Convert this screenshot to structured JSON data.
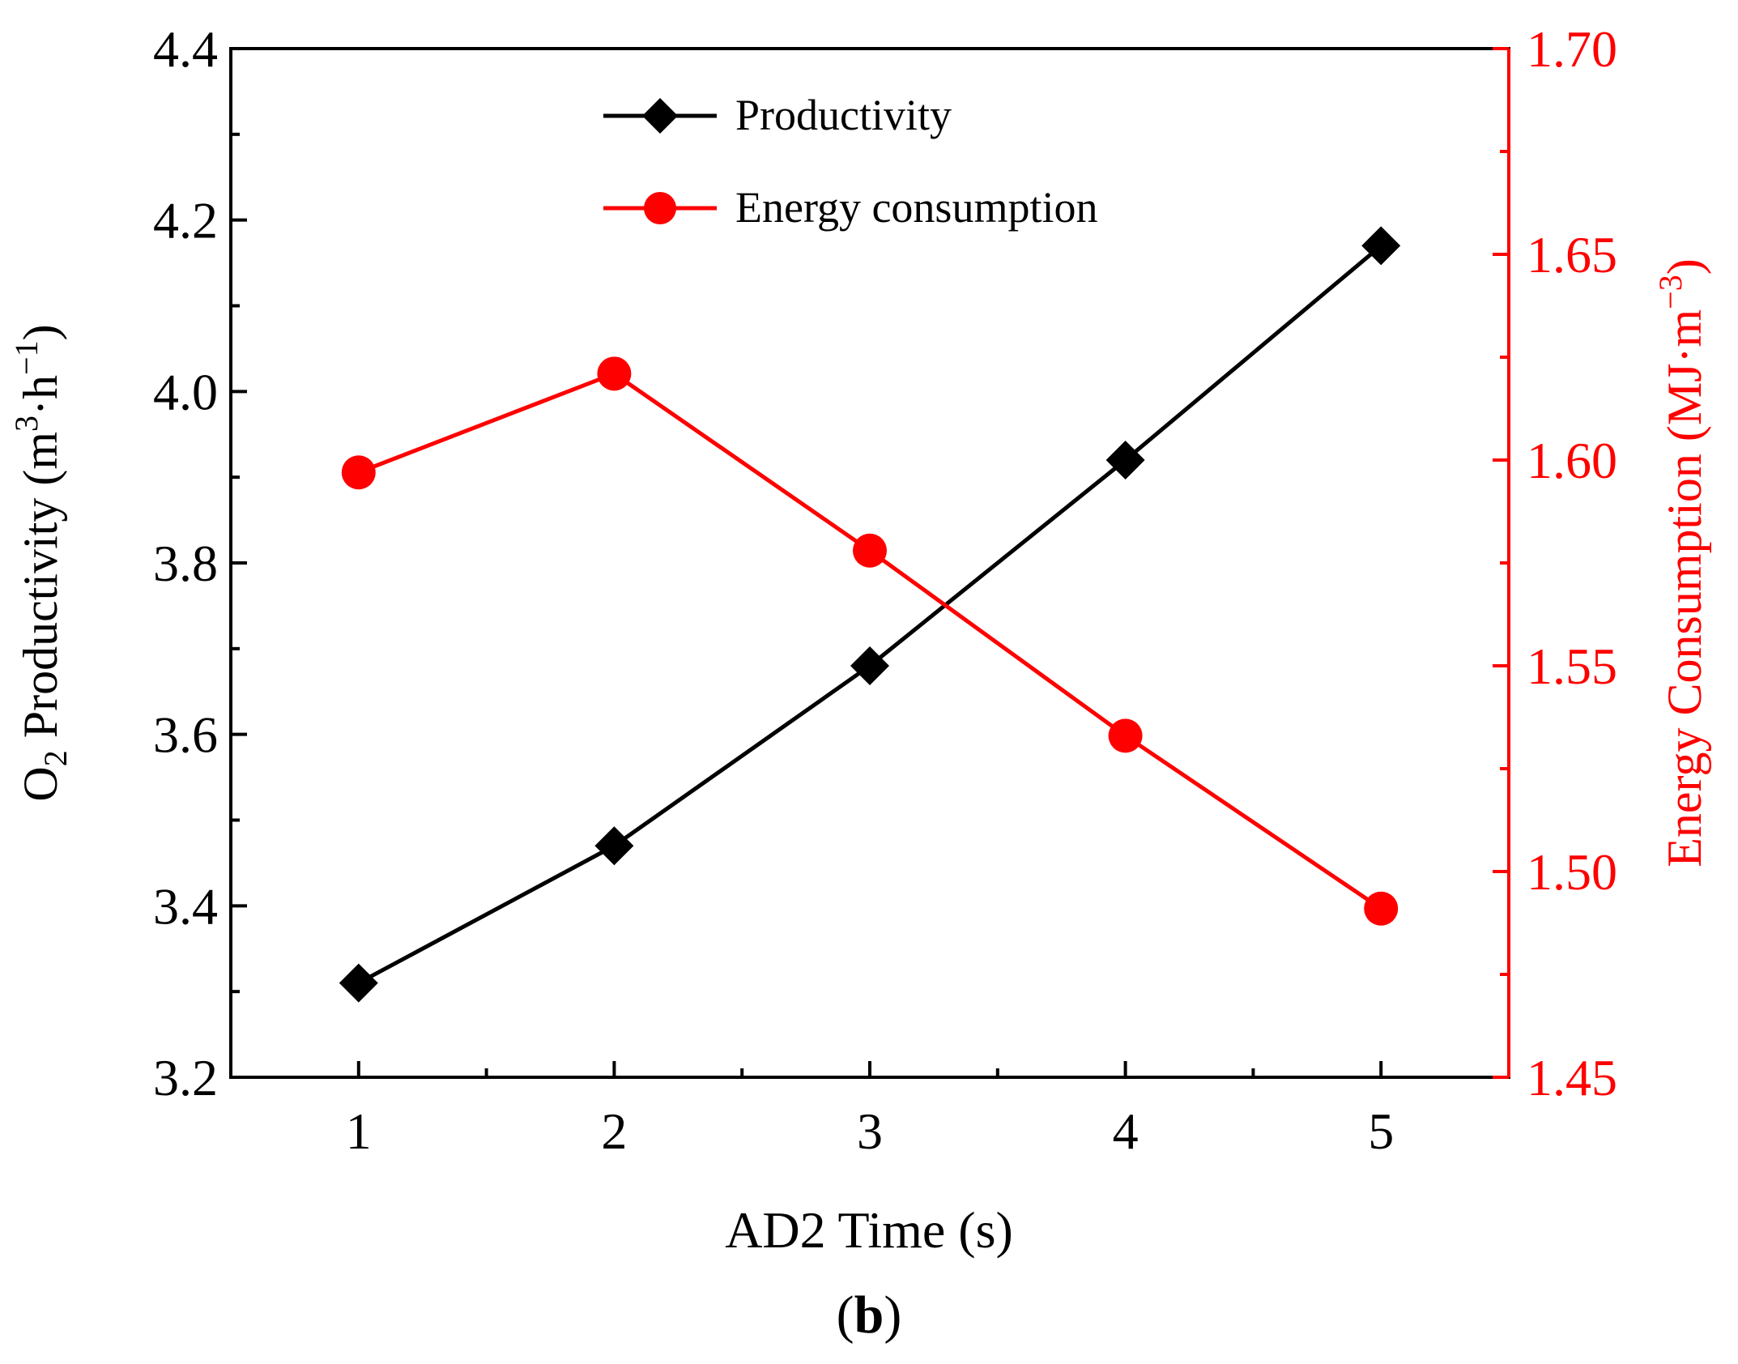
{
  "colors": {
    "left_axis": "#000000",
    "right_axis": "#ff0000",
    "productivity_series": "#000000",
    "energy_series": "#ff0000"
  },
  "panel_label": {
    "open": "(",
    "letter": "b",
    "close": ")"
  },
  "chart_data": {
    "type": "line",
    "title": "",
    "x": [
      1,
      2,
      3,
      4,
      5
    ],
    "xlabel": "AD2 Time (s)",
    "xlim": [
      0.5,
      5.5
    ],
    "xticks": [
      "1",
      "2",
      "3",
      "4",
      "5"
    ],
    "ylabel_left": {
      "prefix": "O",
      "sub": "2",
      "middle": " Productivity (m",
      "sup1": "3",
      "middle2": "·h",
      "sup2": "−1",
      "suffix": ")"
    },
    "ylim_left": [
      3.2,
      4.4
    ],
    "yticks_left": [
      "3.2",
      "3.4",
      "3.6",
      "3.8",
      "4.0",
      "4.2",
      "4.4"
    ],
    "ylabel_right": {
      "main": "Energy Consumption (MJ·m",
      "sup": "−3",
      "suffix": ")"
    },
    "ylim_right": [
      1.45,
      1.7
    ],
    "yticks_right": [
      "1.45",
      "1.50",
      "1.55",
      "1.60",
      "1.65",
      "1.70"
    ],
    "legend_position": "top-center",
    "series": [
      {
        "name": "Productivity",
        "axis": "left",
        "marker": "diamond",
        "values": [
          3.31,
          3.47,
          3.68,
          3.92,
          4.17
        ]
      },
      {
        "name": "Energy consumption",
        "axis": "right",
        "marker": "circle",
        "values": [
          1.597,
          1.621,
          1.578,
          1.533,
          1.491
        ]
      }
    ]
  }
}
